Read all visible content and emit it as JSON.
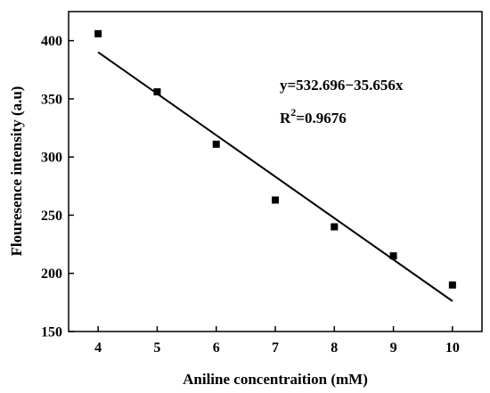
{
  "chart_data": {
    "type": "scatter",
    "title": "",
    "xlabel": "Aniline concentraition (mM)",
    "ylabel": "Flouresence intensity (a.u)",
    "xlim": [
      3.5,
      10.5
    ],
    "ylim": [
      150,
      425
    ],
    "xticks": [
      4,
      5,
      6,
      7,
      8,
      9,
      10
    ],
    "yticks": [
      150,
      200,
      250,
      300,
      350,
      400
    ],
    "grid": false,
    "legend": "none",
    "series": [
      {
        "marker": "square",
        "color": "#000000",
        "x": [
          4,
          5,
          6,
          7,
          8,
          9,
          10
        ],
        "y": [
          406,
          356,
          311,
          263,
          240,
          215,
          190
        ]
      }
    ],
    "fit_line": {
      "intercept": 532.696,
      "slope": -35.656,
      "x_range": [
        4,
        10
      ],
      "color": "#000000"
    },
    "annotations": {
      "equation": "y=532.696−35.656x",
      "r2_prefix": "R",
      "r2_sup": "2",
      "r2_value": "=0.9676"
    }
  }
}
